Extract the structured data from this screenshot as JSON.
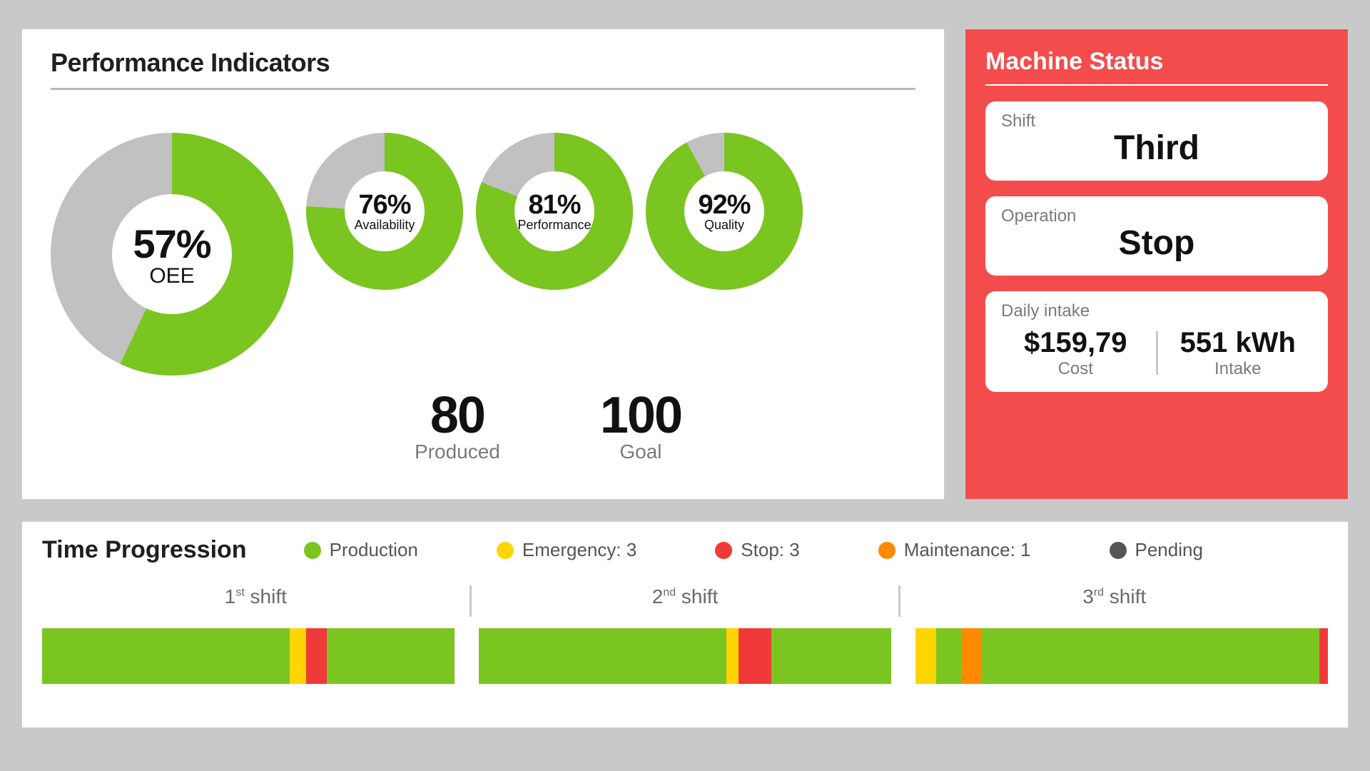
{
  "colors": {
    "page_bg": "#c9c9c9",
    "panel_bg": "#ffffff",
    "panel_border": "#d0d0d0",
    "text_dark": "#1f1f1f",
    "text_muted": "#7a7a7a",
    "donut_filled": "#7ac520",
    "donut_empty": "#c1c1c1",
    "status_bg": "#f44c4c",
    "production": "#7ac520",
    "emergency": "#ffd500",
    "stop": "#f03a3a",
    "maintenance": "#ff8a00",
    "pending": "#555555"
  },
  "performance": {
    "title": "Performance Indicators",
    "donuts": {
      "oee": {
        "pct": 57,
        "pct_text": "57%",
        "label": "OEE",
        "size": 340,
        "thickness": 86
      },
      "availability": {
        "pct": 76,
        "pct_text": "76%",
        "label": "Availability",
        "size": 220,
        "thickness": 54
      },
      "performance": {
        "pct": 81,
        "pct_text": "81%",
        "label": "Performance",
        "size": 220,
        "thickness": 54
      },
      "quality": {
        "pct": 92,
        "pct_text": "92%",
        "label": "Quality",
        "size": 220,
        "thickness": 54
      }
    },
    "produced": {
      "value": "80",
      "label": "Produced"
    },
    "goal": {
      "value": "100",
      "label": "Goal"
    }
  },
  "machine_status": {
    "title": "Machine Status",
    "shift": {
      "label": "Shift",
      "value": "Third"
    },
    "operation": {
      "label": "Operation",
      "value": "Stop"
    },
    "intake": {
      "label": "Daily intake",
      "cost": {
        "value": "$159,79",
        "label": "Cost"
      },
      "energy": {
        "value": "551 kWh",
        "label": "Intake"
      }
    }
  },
  "time_progression": {
    "title": "Time Progression",
    "legend": [
      {
        "color": "#7ac520",
        "label": "Production"
      },
      {
        "color": "#ffd500",
        "label": "Emergency: 3"
      },
      {
        "color": "#f03a3a",
        "label": "Stop: 3"
      },
      {
        "color": "#ff8a00",
        "label": "Maintenance: 1"
      },
      {
        "color": "#555555",
        "label": "Pending"
      }
    ],
    "shifts": [
      {
        "ord": "1",
        "suffix": "st",
        "word": "shift",
        "segments": [
          {
            "color": "#7ac520",
            "pct": 60
          },
          {
            "color": "#ffd500",
            "pct": 4
          },
          {
            "color": "#f03a3a",
            "pct": 5
          },
          {
            "color": "#7ac520",
            "pct": 31
          }
        ]
      },
      {
        "ord": "2",
        "suffix": "nd",
        "word": "shift",
        "segments": [
          {
            "color": "#7ac520",
            "pct": 60
          },
          {
            "color": "#ffd500",
            "pct": 3
          },
          {
            "color": "#f03a3a",
            "pct": 8
          },
          {
            "color": "#7ac520",
            "pct": 29
          }
        ]
      },
      {
        "ord": "3",
        "suffix": "rd",
        "word": "shift",
        "segments": [
          {
            "color": "#ffd500",
            "pct": 5
          },
          {
            "color": "#7ac520",
            "pct": 6
          },
          {
            "color": "#ff8a00",
            "pct": 5
          },
          {
            "color": "#7ac520",
            "pct": 82
          },
          {
            "color": "#f03a3a",
            "pct": 2
          }
        ]
      }
    ]
  }
}
